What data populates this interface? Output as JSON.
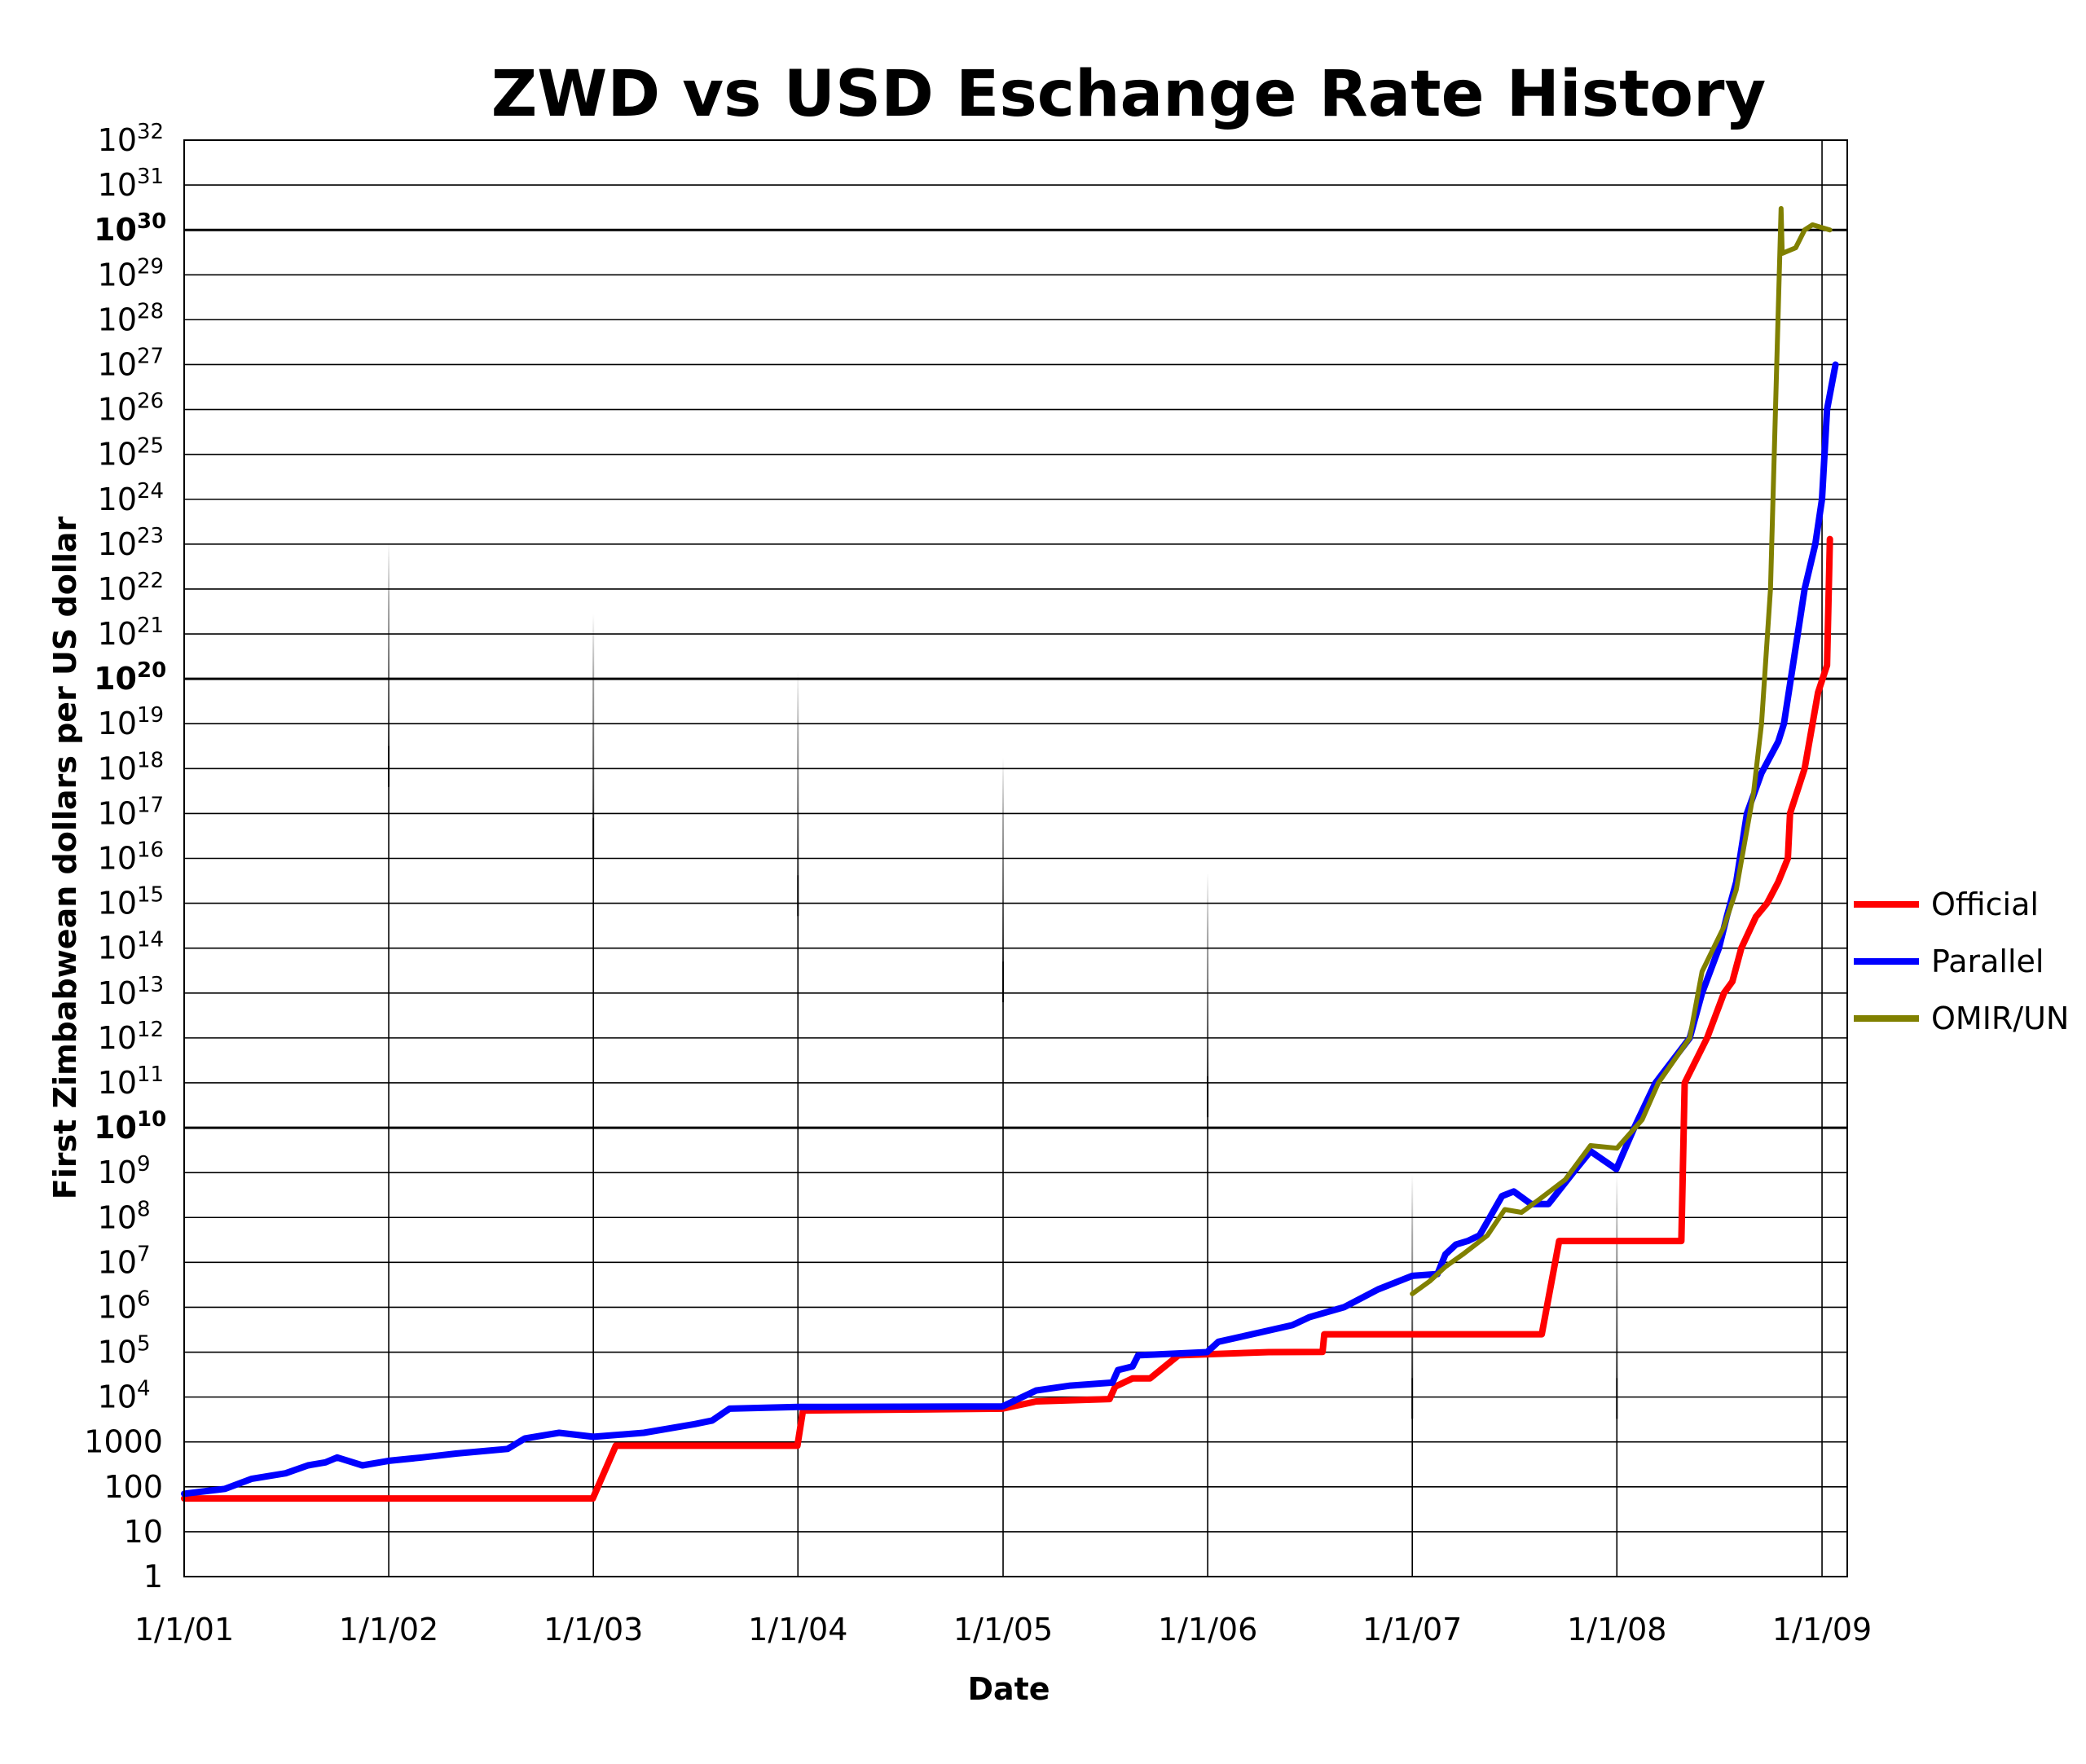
{
  "chart_data": {
    "type": "line",
    "title": "ZWD vs USD Eschange Rate History",
    "xlabel": "Date",
    "ylabel": "First Zimbabwean dollars per US dollar",
    "yscale": "log",
    "ylim": [
      1,
      1e+32
    ],
    "xlim": [
      "2001-01-01",
      "2009-02-15"
    ],
    "grid": true,
    "legend_position": "right",
    "x_ticks": [
      {
        "date": "2001-01-01",
        "label": "1/1/01"
      },
      {
        "date": "2002-01-01",
        "label": "1/1/02"
      },
      {
        "date": "2003-01-01",
        "label": "1/1/03"
      },
      {
        "date": "2004-01-01",
        "label": "1/1/04"
      },
      {
        "date": "2005-01-01",
        "label": "1/1/05"
      },
      {
        "date": "2006-01-01",
        "label": "1/1/06"
      },
      {
        "date": "2007-01-01",
        "label": "1/1/07"
      },
      {
        "date": "2008-01-01",
        "label": "1/1/08"
      },
      {
        "date": "2009-01-01",
        "label": "1/1/09"
      }
    ],
    "y_ticks": [
      {
        "exp": 0,
        "base": "1",
        "sup": ""
      },
      {
        "exp": 1,
        "base": "10",
        "sup": ""
      },
      {
        "exp": 2,
        "base": "100",
        "sup": ""
      },
      {
        "exp": 3,
        "base": "1000",
        "sup": ""
      },
      {
        "exp": 4,
        "base": "10",
        "sup": "4"
      },
      {
        "exp": 5,
        "base": "10",
        "sup": "5"
      },
      {
        "exp": 6,
        "base": "10",
        "sup": "6"
      },
      {
        "exp": 7,
        "base": "10",
        "sup": "7"
      },
      {
        "exp": 8,
        "base": "10",
        "sup": "8"
      },
      {
        "exp": 9,
        "base": "10",
        "sup": "9"
      },
      {
        "exp": 10,
        "base": "10",
        "sup": "10",
        "bold": true
      },
      {
        "exp": 11,
        "base": "10",
        "sup": "11"
      },
      {
        "exp": 12,
        "base": "10",
        "sup": "12"
      },
      {
        "exp": 13,
        "base": "10",
        "sup": "13"
      },
      {
        "exp": 14,
        "base": "10",
        "sup": "14"
      },
      {
        "exp": 15,
        "base": "10",
        "sup": "15"
      },
      {
        "exp": 16,
        "base": "10",
        "sup": "16"
      },
      {
        "exp": 17,
        "base": "10",
        "sup": "17"
      },
      {
        "exp": 18,
        "base": "10",
        "sup": "18"
      },
      {
        "exp": 19,
        "base": "10",
        "sup": "19"
      },
      {
        "exp": 20,
        "base": "10",
        "sup": "20",
        "bold": true
      },
      {
        "exp": 21,
        "base": "10",
        "sup": "21"
      },
      {
        "exp": 22,
        "base": "10",
        "sup": "22"
      },
      {
        "exp": 23,
        "base": "10",
        "sup": "23"
      },
      {
        "exp": 24,
        "base": "10",
        "sup": "24"
      },
      {
        "exp": 25,
        "base": "10",
        "sup": "25"
      },
      {
        "exp": 26,
        "base": "10",
        "sup": "26"
      },
      {
        "exp": 27,
        "base": "10",
        "sup": "27"
      },
      {
        "exp": 28,
        "base": "10",
        "sup": "28"
      },
      {
        "exp": 29,
        "base": "10",
        "sup": "29"
      },
      {
        "exp": 30,
        "base": "10",
        "sup": "30",
        "bold": true
      },
      {
        "exp": 31,
        "base": "10",
        "sup": "31"
      },
      {
        "exp": 32,
        "base": "10",
        "sup": "32"
      }
    ],
    "series": [
      {
        "name": "Official",
        "color": "#ff0000",
        "points": [
          [
            "2001-01-01",
            55
          ],
          [
            "2002-12-31",
            55
          ],
          [
            "2003-02-10",
            824
          ],
          [
            "2003-12-31",
            824
          ],
          [
            "2004-01-10",
            5000
          ],
          [
            "2004-12-31",
            5500
          ],
          [
            "2005-03-01",
            8000
          ],
          [
            "2005-07-10",
            9000
          ],
          [
            "2005-07-20",
            17000
          ],
          [
            "2005-08-20",
            26000
          ],
          [
            "2005-09-20",
            26000
          ],
          [
            "2005-11-10",
            85000
          ],
          [
            "2006-04-20",
            100000
          ],
          [
            "2006-07-25",
            101000
          ],
          [
            "2006-07-28",
            250000
          ],
          [
            "2007-08-20",
            250000
          ],
          [
            "2007-09-20",
            30000000
          ],
          [
            "2008-04-25",
            30000000
          ],
          [
            "2008-05-01",
            100000000000.0
          ],
          [
            "2008-06-10",
            1000000000000.0
          ],
          [
            "2008-07-10",
            10000000000000.0
          ],
          [
            "2008-07-25",
            18000000000000.0
          ],
          [
            "2008-08-10",
            100000000000000.0
          ],
          [
            "2008-09-05",
            500000000000000.0
          ],
          [
            "2008-09-25",
            1000000000000000.0
          ],
          [
            "2008-10-15",
            3000000000000000.0
          ],
          [
            "2008-11-01",
            1e+16
          ],
          [
            "2008-11-05",
            1e+17
          ],
          [
            "2008-12-01",
            1e+18
          ],
          [
            "2008-12-15",
            1e+19
          ],
          [
            "2008-12-25",
            5e+19
          ],
          [
            "2009-01-10",
            2e+20
          ],
          [
            "2009-01-15",
            1.3e+23
          ]
        ]
      },
      {
        "name": "Parallel",
        "color": "#0000ff",
        "points": [
          [
            "2001-01-01",
            70
          ],
          [
            "2001-03-15",
            90
          ],
          [
            "2001-05-01",
            150
          ],
          [
            "2001-07-01",
            200
          ],
          [
            "2001-08-10",
            300
          ],
          [
            "2001-09-10",
            350
          ],
          [
            "2001-10-01",
            450
          ],
          [
            "2001-11-15",
            300
          ],
          [
            "2002-01-01",
            380
          ],
          [
            "2002-03-01",
            450
          ],
          [
            "2002-05-01",
            550
          ],
          [
            "2002-08-01",
            700
          ],
          [
            "2002-09-01",
            1200
          ],
          [
            "2002-11-01",
            1600
          ],
          [
            "2003-01-01",
            1300
          ],
          [
            "2003-04-01",
            1600
          ],
          [
            "2003-07-01",
            2500
          ],
          [
            "2003-08-01",
            3000
          ],
          [
            "2003-09-01",
            5500
          ],
          [
            "2004-01-01",
            6000
          ],
          [
            "2004-12-31",
            6200
          ],
          [
            "2005-03-01",
            14000
          ],
          [
            "2005-05-01",
            18000
          ],
          [
            "2005-07-15",
            21000
          ],
          [
            "2005-07-25",
            40000
          ],
          [
            "2005-08-20",
            48000
          ],
          [
            "2005-08-30",
            85000
          ],
          [
            "2005-12-31",
            100000
          ],
          [
            "2006-01-20",
            170000
          ],
          [
            "2006-03-01",
            220000
          ],
          [
            "2006-06-01",
            400000
          ],
          [
            "2006-07-01",
            600000
          ],
          [
            "2006-09-01",
            1000000
          ],
          [
            "2006-11-01",
            2500000
          ],
          [
            "2007-01-01",
            5000000
          ],
          [
            "2007-02-15",
            5500000
          ],
          [
            "2007-03-01",
            15000000
          ],
          [
            "2007-03-20",
            25000000
          ],
          [
            "2007-04-10",
            30000000
          ],
          [
            "2007-05-01",
            40000000
          ],
          [
            "2007-06-10",
            300000000
          ],
          [
            "2007-07-01",
            380000000
          ],
          [
            "2007-08-01",
            200000000
          ],
          [
            "2007-09-01",
            200000000
          ],
          [
            "2007-10-15",
            1000000000.0
          ],
          [
            "2007-11-15",
            3000000000.0
          ],
          [
            "2007-12-31",
            1200000000.0
          ],
          [
            "2008-02-01",
            10000000000.0
          ],
          [
            "2008-03-10",
            100000000000.0
          ],
          [
            "2008-05-10",
            1000000000000.0
          ],
          [
            "2008-06-01",
            10000000000000.0
          ],
          [
            "2008-07-01",
            100000000000000.0
          ],
          [
            "2008-07-15",
            500000000000000.0
          ],
          [
            "2008-08-01",
            3000000000000000.0
          ],
          [
            "2008-08-20",
            1e+17
          ],
          [
            "2008-09-15",
            8e+17
          ],
          [
            "2008-10-15",
            4e+18
          ],
          [
            "2008-10-25",
            1e+19
          ],
          [
            "2008-11-15",
            5e+20
          ],
          [
            "2008-12-01",
            1e+22
          ],
          [
            "2008-12-20",
            1e+23
          ],
          [
            "2009-01-01",
            1e+24
          ],
          [
            "2009-01-10",
            1e+26
          ],
          [
            "2009-01-25",
            1e+27
          ]
        ]
      },
      {
        "name": "OMIR/UN",
        "color": "#808000",
        "points": [
          [
            "2007-01-01",
            2000000
          ],
          [
            "2007-02-01",
            3800000
          ],
          [
            "2007-03-01",
            8000000
          ],
          [
            "2007-04-01",
            15000000
          ],
          [
            "2007-05-15",
            40000000
          ],
          [
            "2007-06-15",
            150000000
          ],
          [
            "2007-07-15",
            130000000
          ],
          [
            "2007-08-15",
            250000000
          ],
          [
            "2007-10-01",
            700000000
          ],
          [
            "2007-11-15",
            4000000000.0
          ],
          [
            "2008-01-01",
            3500000000.0
          ],
          [
            "2008-02-15",
            15000000000.0
          ],
          [
            "2008-03-15",
            100000000000.0
          ],
          [
            "2008-05-10",
            1000000000000.0
          ],
          [
            "2008-06-01",
            30000000000000.0
          ],
          [
            "2008-07-10",
            300000000000000.0
          ],
          [
            "2008-08-01",
            2000000000000000.0
          ],
          [
            "2008-09-01",
            3e+17
          ],
          [
            "2008-09-15",
            1e+19
          ],
          [
            "2008-10-01",
            1e+22
          ],
          [
            "2008-10-20",
            3e+30
          ],
          [
            "2008-10-22",
            3e+29
          ],
          [
            "2008-11-15",
            4e+29
          ],
          [
            "2008-12-01",
            1e+30
          ],
          [
            "2008-12-15",
            1.3e+30
          ],
          [
            "2009-01-15",
            1e+30
          ]
        ]
      }
    ]
  }
}
